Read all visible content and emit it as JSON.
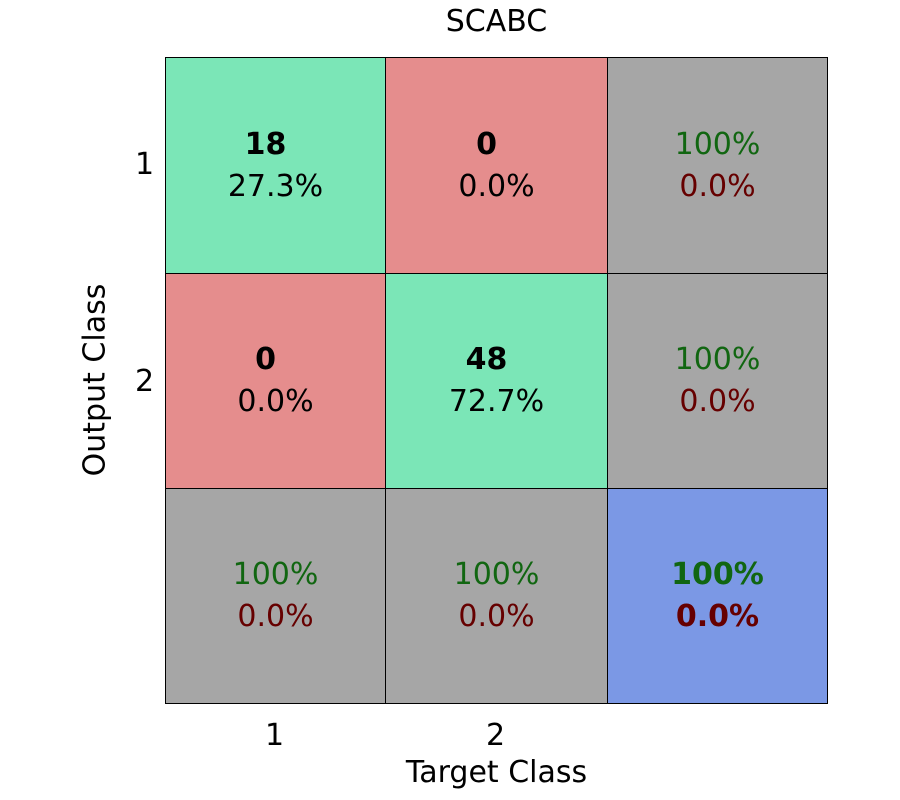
{
  "chart_data": {
    "type": "heatmap",
    "title": "SCABC",
    "xlabel": "Target Class",
    "ylabel": "Output Class",
    "x_tick_labels": [
      "1",
      "2"
    ],
    "y_tick_labels": [
      "1",
      "2"
    ],
    "matrix": [
      [
        {
          "count": "18",
          "percent": "27.3%"
        },
        {
          "count": "0",
          "percent": "0.0%"
        }
      ],
      [
        {
          "count": "0",
          "percent": "0.0%"
        },
        {
          "count": "48",
          "percent": "72.7%"
        }
      ]
    ],
    "row_summary": [
      {
        "correct": "100%",
        "error": "0.0%"
      },
      {
        "correct": "100%",
        "error": "0.0%"
      }
    ],
    "column_summary": [
      {
        "correct": "100%",
        "error": "0.0%"
      },
      {
        "correct": "100%",
        "error": "0.0%"
      }
    ],
    "overall": {
      "correct": "100%",
      "error": "0.0%"
    }
  },
  "colors": {
    "correct_cell": "#7be6b7",
    "error_cell": "#e58d8d",
    "summary_cell": "#a6a6a6",
    "overall_cell": "#7b98e5"
  }
}
